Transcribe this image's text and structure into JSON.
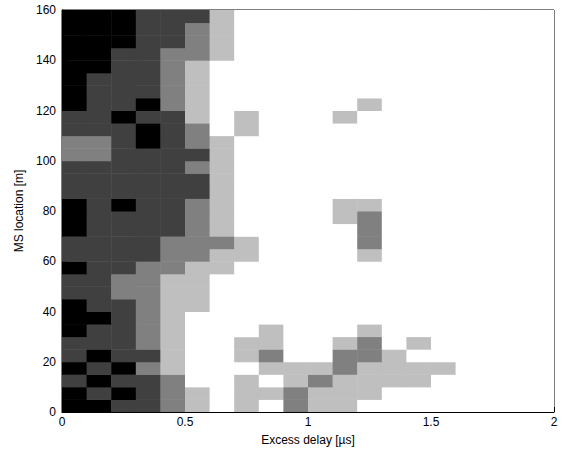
{
  "chart_data": {
    "type": "heatmap",
    "xlabel": "Excess delay [µs]",
    "ylabel": "MS location [m]",
    "xlim": [
      0,
      2
    ],
    "xticks": [
      0,
      0.5,
      1,
      1.5,
      2
    ],
    "ylim": [
      0,
      160
    ],
    "yticks": [
      0,
      20,
      40,
      60,
      80,
      100,
      120,
      140,
      160
    ],
    "color": "#000000",
    "value_range": [
      0,
      4
    ],
    "x": [
      0.05,
      0.15,
      0.25,
      0.35,
      0.45,
      0.55,
      0.65,
      0.75,
      0.85,
      0.95,
      1.05,
      1.15,
      1.25,
      1.35,
      1.45,
      1.55,
      1.65,
      1.75,
      1.85,
      1.95
    ],
    "y": [
      2.5,
      7.5,
      12.5,
      17.5,
      22.5,
      27.5,
      32.5,
      37.5,
      42.5,
      47.5,
      52.5,
      57.5,
      62.5,
      67.5,
      72.5,
      77.5,
      82.5,
      87.5,
      92.5,
      97.5,
      102.5,
      107.5,
      112.5,
      117.5,
      122.5,
      127.5,
      132.5,
      137.5,
      142.5,
      147.5,
      152.5,
      157.5
    ],
    "cells": [
      [
        4,
        4,
        3,
        3,
        2,
        1,
        0,
        1,
        0,
        2,
        1,
        1,
        0,
        0,
        0,
        0,
        0,
        0,
        0,
        0
      ],
      [
        4,
        3,
        4,
        3,
        2,
        1,
        0,
        1,
        1,
        2,
        1,
        1,
        1,
        0,
        0,
        0,
        0,
        0,
        0,
        0
      ],
      [
        3,
        4,
        3,
        3,
        2,
        0,
        0,
        1,
        0,
        1,
        2,
        1,
        1,
        1,
        1,
        0,
        0,
        0,
        0,
        0
      ],
      [
        4,
        3,
        4,
        2,
        1,
        0,
        0,
        0,
        1,
        1,
        1,
        2,
        1,
        1,
        1,
        1,
        0,
        0,
        0,
        0
      ],
      [
        3,
        4,
        3,
        3,
        1,
        0,
        0,
        1,
        2,
        0,
        0,
        2,
        2,
        1,
        0,
        0,
        0,
        0,
        0,
        0
      ],
      [
        3,
        3,
        3,
        2,
        1,
        0,
        0,
        1,
        1,
        0,
        0,
        1,
        2,
        0,
        1,
        0,
        0,
        0,
        0,
        0
      ],
      [
        4,
        3,
        3,
        2,
        1,
        0,
        0,
        0,
        1,
        0,
        0,
        0,
        1,
        0,
        0,
        0,
        0,
        0,
        0,
        0
      ],
      [
        4,
        4,
        3,
        2,
        1,
        0,
        0,
        0,
        0,
        0,
        0,
        0,
        0,
        0,
        0,
        0,
        0,
        0,
        0,
        0
      ],
      [
        4,
        3,
        3,
        2,
        1,
        1,
        0,
        0,
        0,
        0,
        0,
        0,
        0,
        0,
        0,
        0,
        0,
        0,
        0,
        0
      ],
      [
        3,
        3,
        2,
        2,
        1,
        1,
        0,
        0,
        0,
        0,
        0,
        0,
        0,
        0,
        0,
        0,
        0,
        0,
        0,
        0
      ],
      [
        3,
        3,
        2,
        2,
        1,
        1,
        0,
        0,
        0,
        0,
        0,
        0,
        0,
        0,
        0,
        0,
        0,
        0,
        0,
        0
      ],
      [
        4,
        3,
        3,
        2,
        2,
        1,
        1,
        0,
        0,
        0,
        0,
        0,
        0,
        0,
        0,
        0,
        0,
        0,
        0,
        0
      ],
      [
        3,
        3,
        3,
        3,
        2,
        2,
        1,
        1,
        0,
        0,
        0,
        0,
        1,
        0,
        0,
        0,
        0,
        0,
        0,
        0
      ],
      [
        3,
        3,
        3,
        3,
        2,
        2,
        2,
        1,
        0,
        0,
        0,
        0,
        2,
        0,
        0,
        0,
        0,
        0,
        0,
        0
      ],
      [
        4,
        3,
        3,
        3,
        3,
        2,
        1,
        0,
        0,
        0,
        0,
        0,
        2,
        0,
        0,
        0,
        0,
        0,
        0,
        0
      ],
      [
        4,
        3,
        3,
        3,
        3,
        2,
        1,
        0,
        0,
        0,
        0,
        1,
        2,
        0,
        0,
        0,
        0,
        0,
        0,
        0
      ],
      [
        4,
        3,
        4,
        3,
        3,
        2,
        1,
        0,
        0,
        0,
        0,
        1,
        1,
        0,
        0,
        0,
        0,
        0,
        0,
        0
      ],
      [
        3,
        3,
        3,
        3,
        3,
        3,
        1,
        0,
        0,
        0,
        0,
        0,
        0,
        0,
        0,
        0,
        0,
        0,
        0,
        0
      ],
      [
        3,
        3,
        3,
        3,
        3,
        3,
        1,
        0,
        0,
        0,
        0,
        0,
        0,
        0,
        0,
        0,
        0,
        0,
        0,
        0
      ],
      [
        3,
        3,
        3,
        3,
        3,
        2,
        1,
        0,
        0,
        0,
        0,
        0,
        0,
        0,
        0,
        0,
        0,
        0,
        0,
        0
      ],
      [
        2,
        2,
        3,
        3,
        3,
        3,
        1,
        0,
        0,
        0,
        0,
        0,
        0,
        0,
        0,
        0,
        0,
        0,
        0,
        0
      ],
      [
        2,
        2,
        3,
        4,
        3,
        2,
        1,
        0,
        0,
        0,
        0,
        0,
        0,
        0,
        0,
        0,
        0,
        0,
        0,
        0
      ],
      [
        3,
        3,
        3,
        4,
        3,
        2,
        0,
        1,
        0,
        0,
        0,
        0,
        0,
        0,
        0,
        0,
        0,
        0,
        0,
        0
      ],
      [
        3,
        3,
        4,
        3,
        3,
        1,
        0,
        1,
        0,
        0,
        0,
        1,
        0,
        0,
        0,
        0,
        0,
        0,
        0,
        0
      ],
      [
        4,
        3,
        3,
        4,
        2,
        1,
        0,
        0,
        0,
        0,
        0,
        0,
        1,
        0,
        0,
        0,
        0,
        0,
        0,
        0
      ],
      [
        4,
        3,
        3,
        3,
        2,
        1,
        0,
        0,
        0,
        0,
        0,
        0,
        0,
        0,
        0,
        0,
        0,
        0,
        0,
        0
      ],
      [
        4,
        3,
        3,
        3,
        2,
        1,
        0,
        0,
        0,
        0,
        0,
        0,
        0,
        0,
        0,
        0,
        0,
        0,
        0,
        0
      ],
      [
        4,
        4,
        3,
        3,
        2,
        1,
        0,
        0,
        0,
        0,
        0,
        0,
        0,
        0,
        0,
        0,
        0,
        0,
        0,
        0
      ],
      [
        4,
        4,
        3,
        3,
        2,
        2,
        1,
        0,
        0,
        0,
        0,
        0,
        0,
        0,
        0,
        0,
        0,
        0,
        0,
        0
      ],
      [
        4,
        4,
        4,
        3,
        3,
        2,
        1,
        0,
        0,
        0,
        0,
        0,
        0,
        0,
        0,
        0,
        0,
        0,
        0,
        0
      ],
      [
        4,
        4,
        4,
        3,
        3,
        2,
        1,
        0,
        0,
        0,
        0,
        0,
        0,
        0,
        0,
        0,
        0,
        0,
        0,
        0
      ],
      [
        4,
        4,
        4,
        3,
        3,
        3,
        1,
        0,
        0,
        0,
        0,
        0,
        0,
        0,
        0,
        0,
        0,
        0,
        0,
        0
      ]
    ]
  }
}
